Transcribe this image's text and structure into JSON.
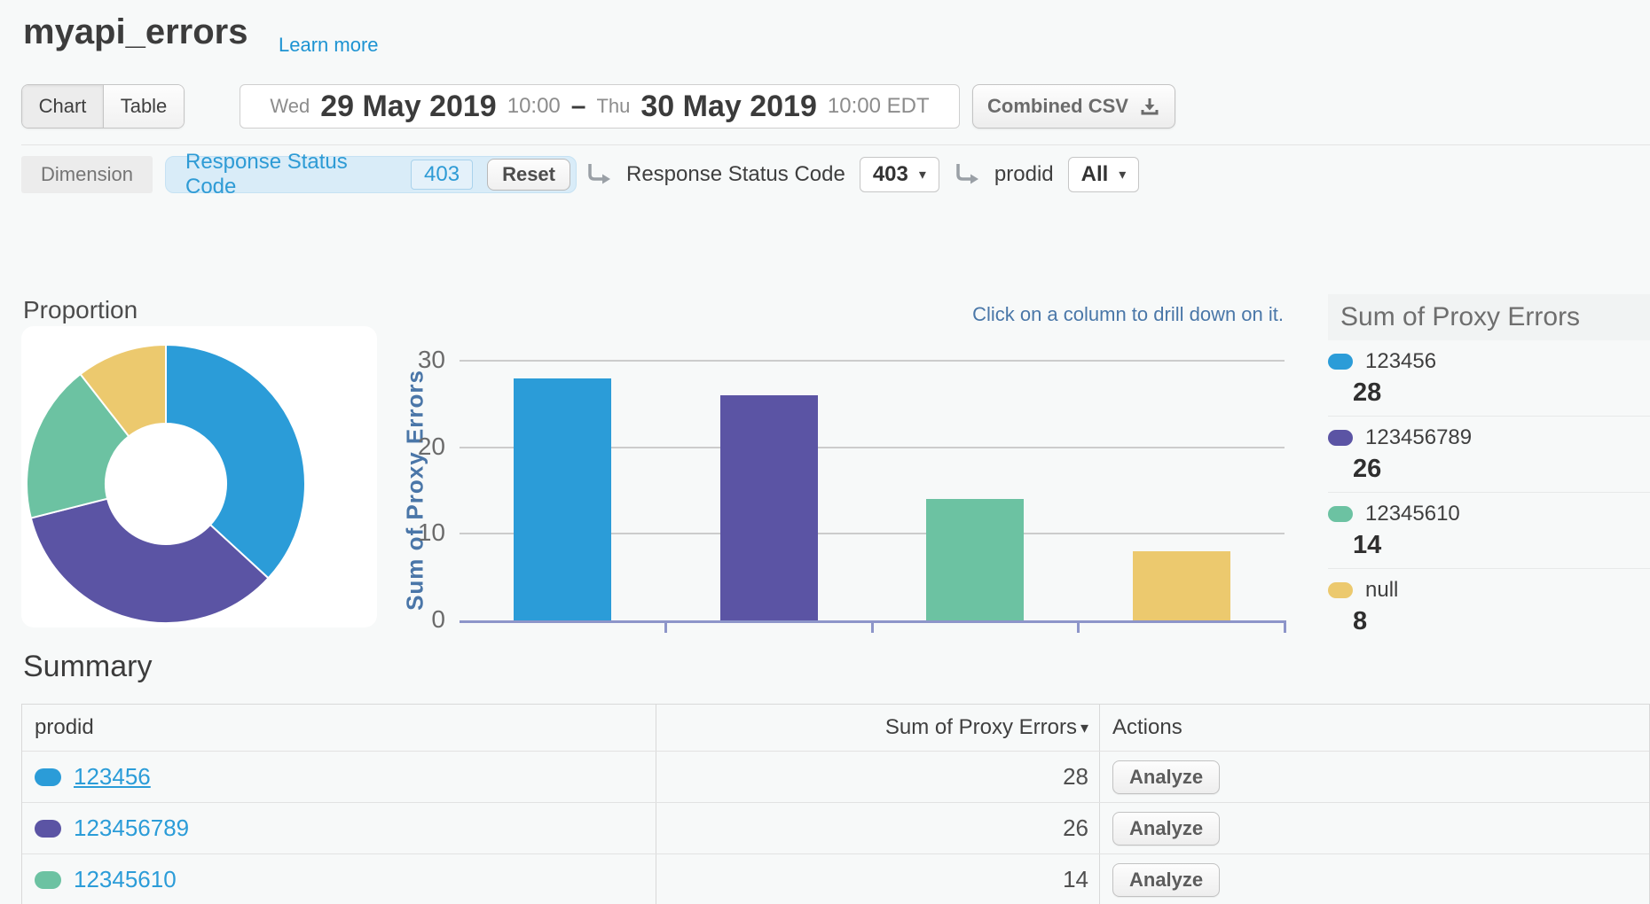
{
  "header": {
    "title": "myapi_errors",
    "learn_more": "Learn more"
  },
  "toolbar": {
    "view_toggle": [
      {
        "label": "Chart",
        "active": true
      },
      {
        "label": "Table",
        "active": false
      }
    ],
    "date_range": {
      "parts": [
        {
          "kind": "day",
          "text": "Wed"
        },
        {
          "kind": "date",
          "text": "29 May 2019"
        },
        {
          "kind": "time",
          "text": "10:00"
        },
        {
          "kind": "sep",
          "text": "–"
        },
        {
          "kind": "day",
          "text": "Thu"
        },
        {
          "kind": "date",
          "text": "30 May 2019"
        },
        {
          "kind": "time",
          "text": "10:00 EDT"
        }
      ]
    },
    "csv_label": "Combined CSV"
  },
  "filter": {
    "dimension_label": "Dimension",
    "pill": {
      "label": "Response Status Code",
      "value": "403"
    },
    "reset_label": "Reset",
    "drilldowns": [
      {
        "label": "Response Status Code",
        "value": "403"
      },
      {
        "label": "prodid",
        "value": "All"
      }
    ]
  },
  "charts": {
    "proportion_title": "Proportion",
    "hint": "Click on a column to drill down on it."
  },
  "chart_data": [
    {
      "type": "pie",
      "subtype": "donut",
      "title": "Proportion",
      "labels": [
        "123456",
        "123456789",
        "12345610",
        "null"
      ],
      "values": [
        28,
        26,
        14,
        8
      ],
      "colors": [
        "#2b9cd8",
        "#5b54a4",
        "#6cc2a2",
        "#ecc96e"
      ]
    },
    {
      "type": "bar",
      "categories": [
        "123456",
        "123456789",
        "12345610",
        "null"
      ],
      "values": [
        28,
        26,
        14,
        8
      ],
      "colors": [
        "#2b9cd8",
        "#5b54a4",
        "#6cc2a2",
        "#ecc96e"
      ],
      "title": "",
      "xlabel": "",
      "ylabel": "Sum of Proxy Errors",
      "ylim": [
        0,
        30
      ],
      "yticks": [
        0,
        10,
        20,
        30
      ],
      "grid": true,
      "legend_position": "right"
    }
  ],
  "legend": {
    "title": "Sum of Proxy Errors",
    "items": [
      {
        "label": "123456",
        "value": "28",
        "color": "#2b9cd8"
      },
      {
        "label": "123456789",
        "value": "26",
        "color": "#5b54a4"
      },
      {
        "label": "12345610",
        "value": "14",
        "color": "#6cc2a2"
      },
      {
        "label": "null",
        "value": "8",
        "color": "#ecc96e"
      }
    ]
  },
  "summary": {
    "title": "Summary",
    "columns": [
      "prodid",
      "Sum of Proxy Errors",
      "Actions"
    ],
    "action_label": "Analyze",
    "rows": [
      {
        "prodid": "123456",
        "value": "28",
        "color": "#2b9cd8",
        "underlined": true
      },
      {
        "prodid": "123456789",
        "value": "26",
        "color": "#5b54a4",
        "underlined": false
      },
      {
        "prodid": "12345610",
        "value": "14",
        "color": "#6cc2a2",
        "underlined": false
      }
    ]
  },
  "icons": {
    "download": "download-icon",
    "elbow": "elbow-arrow-icon",
    "caret": "▾",
    "sort": "▾"
  },
  "palette": {
    "page_bg": "#f7f9f9",
    "link_blue": "#2b9cd8",
    "axis_line": "#8d95c9",
    "gridline": "#cccccc",
    "axis_label_blue": "#4a76a8",
    "hint_blue": "#4a77a8"
  }
}
